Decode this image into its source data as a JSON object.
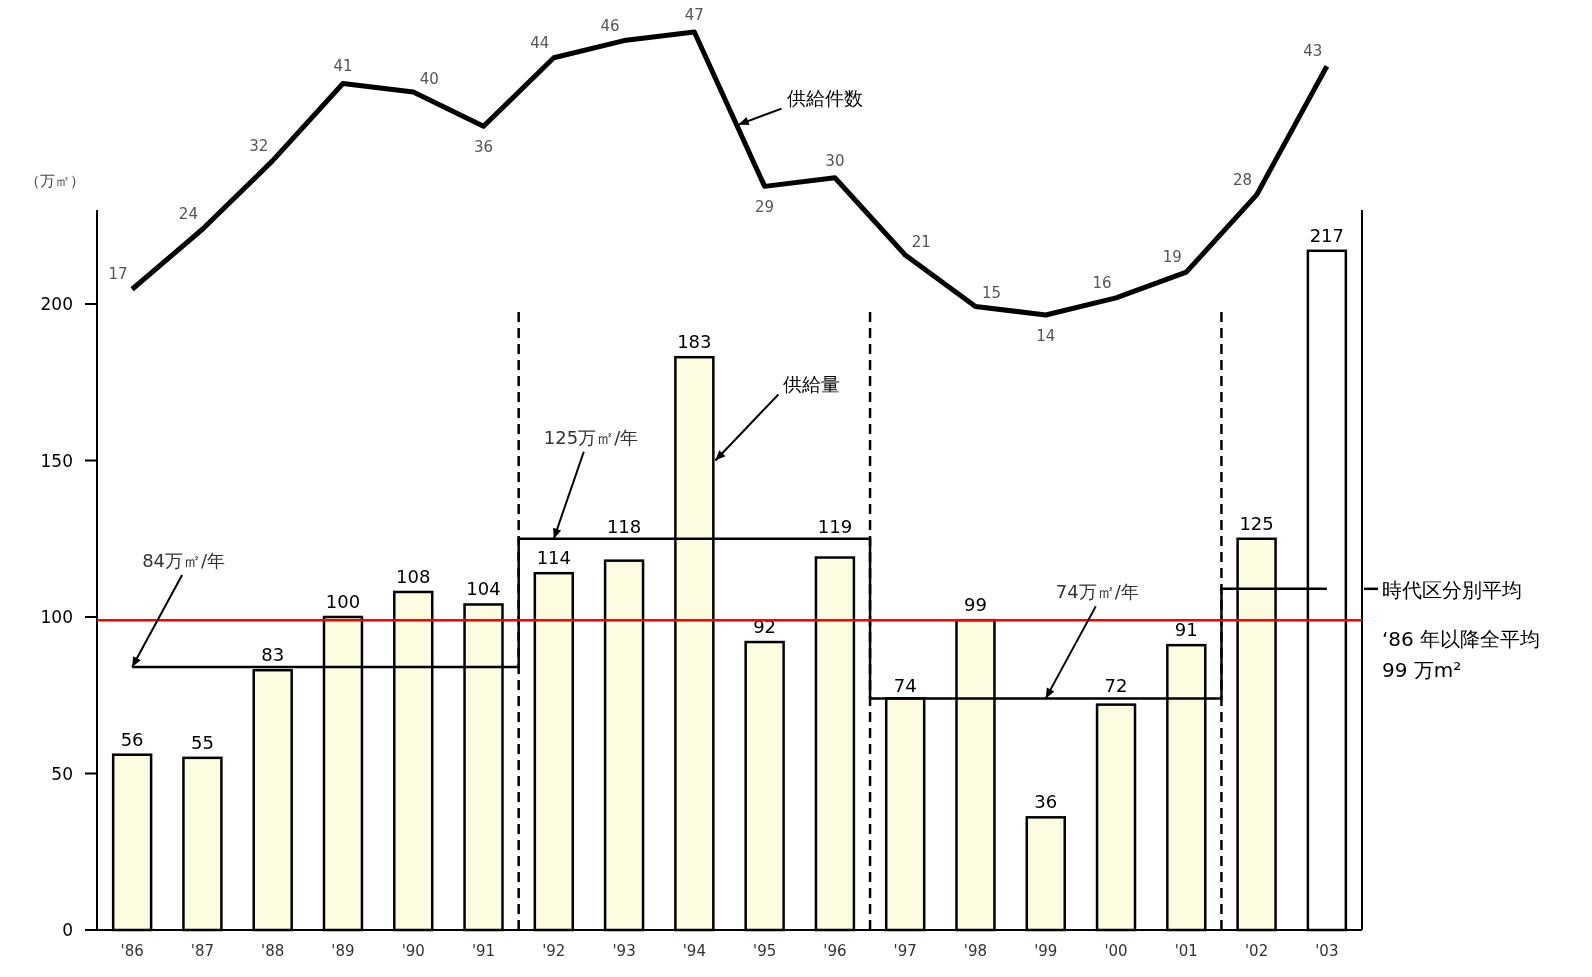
{
  "chart_data": {
    "type": "bar",
    "ylabel": "（万㎡）",
    "categories": [
      "'86",
      "'87",
      "'88",
      "'89",
      "'90",
      "'91",
      "'92",
      "'93",
      "'94",
      "'95",
      "'96",
      "'97",
      "'98",
      "'99",
      "'00",
      "'01",
      "'02",
      "'03"
    ],
    "ylim": [
      0,
      230
    ],
    "yticks": [
      0,
      50,
      100,
      150,
      200
    ],
    "data_labels": true,
    "marker": "none",
    "grid": false,
    "legend": "right",
    "series": [
      {
        "name": "供給量",
        "colors": [
          "#fdfbe0",
          "#fdfbe0",
          "#fdfbe0",
          "#fdfbe0",
          "#fdfbe0",
          "#fdfbe0",
          "#fdfbe0",
          "#fdfbe0",
          "#fdfbe0",
          "#fdfbe0",
          "#fdfbe0",
          "#fdfbe0",
          "#fdfbe0",
          "#fdfbe0",
          "#fdfbe0",
          "#fdfbe0",
          "#fdfbe0",
          "#ffffff"
        ],
        "values": [
          56,
          55,
          83,
          100,
          108,
          104,
          114,
          118,
          183,
          92,
          119,
          74,
          99,
          36,
          72,
          91,
          125,
          217
        ]
      },
      {
        "name": "供給件数",
        "type": "line",
        "axis": "y2",
        "color": "#000000",
        "values": [
          17,
          24,
          32,
          41,
          40,
          36,
          44,
          46,
          47,
          29,
          30,
          21,
          15,
          14,
          16,
          19,
          28,
          43
        ]
      },
      {
        "name": "時代区分別平均",
        "type": "step",
        "color": "#000000",
        "values": [
          84,
          84,
          84,
          84,
          84,
          84,
          125,
          125,
          125,
          125,
          125,
          74,
          74,
          74,
          74,
          74,
          109,
          109
        ],
        "value_labels": [
          null,
          null,
          null,
          null,
          null,
          null,
          null,
          null,
          null,
          null,
          null,
          null,
          null,
          null,
          null,
          null,
          null,
          null
        ]
      }
    ],
    "ref_lines": [
      {
        "axis": "y",
        "value": 99,
        "label": "‘86 年以降全平均\n99 万m²",
        "color": "#ff0000",
        "line_style": "solid"
      }
    ],
    "annotations": [
      {
        "text": "84万㎡/年",
        "x": "'86",
        "y": 84
      },
      {
        "text": "125万㎡/年",
        "x": "'92",
        "y": 125
      },
      {
        "text": "74万㎡/年",
        "x": "'99",
        "y": 74
      }
    ]
  }
}
